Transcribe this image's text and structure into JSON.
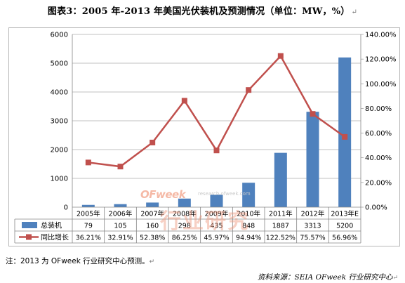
{
  "title": "图表3：2005 年-2013 年美国光伏装机及预测情况（单位：MW，%）",
  "paragraph_mark": "↵",
  "colors": {
    "bar": "#4f81bd",
    "line": "#c0504d",
    "grid": "#868686",
    "wm": "#ee967d"
  },
  "chart_data": {
    "type": "bar+line",
    "categories": [
      "2005年",
      "2006年",
      "2007年",
      "2008年",
      "2009年",
      "2010年",
      "2011年",
      "2012年",
      "2013年E"
    ],
    "series": [
      {
        "name": "总装机",
        "type": "bar",
        "axis": "left",
        "values": [
          79,
          105,
          160,
          298,
          435,
          848,
          1887,
          3313,
          5200
        ],
        "labels": [
          "79",
          "105",
          "160",
          "298",
          "435",
          "848",
          "1887",
          "3313",
          "5200"
        ]
      },
      {
        "name": "同比增长",
        "type": "line",
        "axis": "right",
        "values": [
          36.21,
          32.91,
          52.38,
          86.25,
          45.97,
          94.94,
          122.52,
          75.57,
          56.96
        ],
        "labels": [
          "36.21%",
          "32.91%",
          "52.38%",
          "86.25%",
          "45.97%",
          "94.94%",
          "122.52%",
          "75.57%",
          "56.96%"
        ]
      }
    ],
    "left_axis": {
      "min": 0,
      "max": 6000,
      "ticks": [
        "0",
        "1000",
        "2000",
        "3000",
        "4000",
        "5000",
        "6000"
      ]
    },
    "right_axis": {
      "min": 0,
      "max": 140,
      "ticks": [
        "0.00%",
        "20.00%",
        "40.00%",
        "60.00%",
        "80.00%",
        "100.00%",
        "120.00%",
        "140.00%"
      ]
    },
    "data_table": true
  },
  "watermark": {
    "logo": "OFweek",
    "url": "research.ofweek.com",
    "text": "行业研究"
  },
  "note": "注：2013 为 OFweek 行业研究中心预测。",
  "source": "资料来源：SEIA OFweek 行业研究中心"
}
